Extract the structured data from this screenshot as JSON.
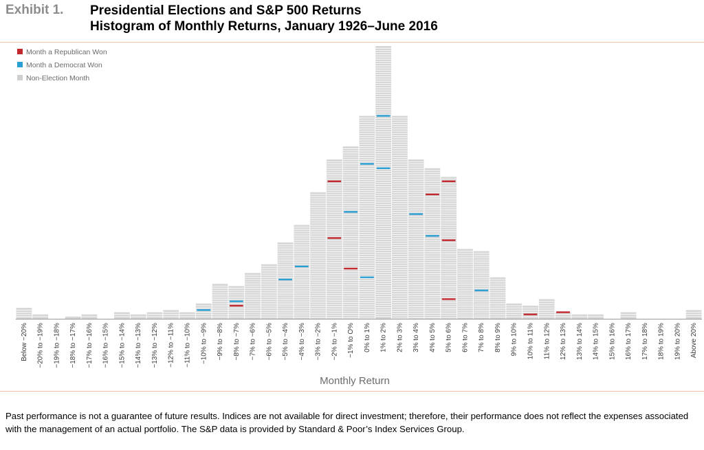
{
  "header": {
    "exhibit": "Exhibit 1.",
    "title_line1": "Presidential Elections and S&P 500 Returns",
    "title_line2": "Histogram of Monthly Returns, January 1926–June 2016"
  },
  "footnote": "Past performance is not a guarantee of future results. Indices are not available for direct investment; therefore, their performance does not reflect the expenses associated with the management of an actual portfolio. The S&P data is provided by Standard & Poor’s Index Services Group.",
  "colors": {
    "bar": "#d6d6d6",
    "stripe": "#ffffff",
    "republican": "#c1272d",
    "democrat": "#2a9fd6",
    "rule": "#f0c2a4"
  },
  "chart_data": {
    "type": "bar",
    "title": "Presidential Elections and S&P 500 Returns — Histogram of Monthly Returns, January 1926–June 2016",
    "xlabel": "Monthly Return",
    "ylabel": "",
    "ylim": [
      0,
      125
    ],
    "grid": false,
    "legend_position": "top-left",
    "legend": [
      {
        "key": "republican",
        "label": "Month a Republican Won"
      },
      {
        "key": "democrat",
        "label": "Month a Democrat Won"
      },
      {
        "key": "non",
        "label": "Non-Election Month"
      }
    ],
    "categories": [
      "Below −20%",
      "−20% to −19%",
      "−19% to −18%",
      "−18% to −17%",
      "−17% to −16%",
      "−16% to −15%",
      "−15% to −14%",
      "−14% to −13%",
      "−13% to −12%",
      "−12% to −11%",
      "−11% to −10%",
      "−10% to −9%",
      "−9% to −8%",
      "−8% to −7%",
      "−7% to −6%",
      "−6% to −5%",
      "−5% to −4%",
      "−4% to −3%",
      "−3% to −2%",
      "−2% to −1%",
      "−1% to 0%",
      "0% to 1%",
      "1% to 2%",
      "2% to 3%",
      "3% to 4%",
      "4% to 5%",
      "5% to 6%",
      "6% to 7%",
      "7% to 8%",
      "8% to 9%",
      "9% to 10%",
      "10% to 11%",
      "11% to 12%",
      "12% to 13%",
      "13% to 14%",
      "14% to 15%",
      "15% to 16%",
      "16% to 17%",
      "17% to 18%",
      "18% to 19%",
      "19% to 20%",
      "Above 20%"
    ],
    "tick_labels": [
      "Below −20%",
      "−20% to −19%",
      "−19% to −18%",
      "−18% to −17%",
      "−17% to −16%",
      "−16% to −15%",
      "−15% to −14%",
      "−14% to −13%",
      "−13% to −12%",
      "−12% to −11%",
      "−11% to −10%",
      "−10% to −9%",
      "−9% to −8%",
      "−8% to −7%",
      "−7% to −6%",
      "−6% to −5%",
      "−5% to −4%",
      "−4% to −3%",
      "−3% to −2%",
      "−2% to −1%",
      "−1% to O%",
      "0% to 1%",
      "1% to 2%",
      "2% to 3%",
      "3% to 4%",
      "4% to 5%",
      "5% to 6%",
      "6% to 7%",
      "7% to 8%",
      "8% to 9%",
      "9% to 10%",
      "10% to 11%",
      "11% to 12%",
      "12% to 13%",
      "13% to 14%",
      "14% to 15%",
      "15% to 16%",
      "16% to 17%",
      "17% to 18%",
      "18% to 19%",
      "19% to 20%",
      "Above 20%"
    ],
    "values": [
      5,
      2,
      0,
      1,
      2,
      0,
      3,
      2,
      3,
      4,
      3,
      7,
      16,
      15,
      21,
      25,
      35,
      43,
      58,
      73,
      79,
      93,
      125,
      93,
      73,
      69,
      65,
      32,
      31,
      19,
      7,
      6,
      9,
      3,
      2,
      2,
      0,
      3,
      0,
      0,
      0,
      4
    ],
    "election_months": [
      {
        "bin": 11,
        "party": "democrat",
        "count": 4
      },
      {
        "bin": 13,
        "party": "democrat",
        "count": 8
      },
      {
        "bin": 13,
        "party": "republican",
        "count": 6
      },
      {
        "bin": 16,
        "party": "democrat",
        "count": 18
      },
      {
        "bin": 17,
        "party": "democrat",
        "count": 24
      },
      {
        "bin": 19,
        "party": "republican",
        "count": 63
      },
      {
        "bin": 19,
        "party": "republican",
        "count": 37
      },
      {
        "bin": 20,
        "party": "democrat",
        "count": 49
      },
      {
        "bin": 20,
        "party": "republican",
        "count": 23
      },
      {
        "bin": 21,
        "party": "democrat",
        "count": 71
      },
      {
        "bin": 21,
        "party": "democrat",
        "count": 19
      },
      {
        "bin": 22,
        "party": "democrat",
        "count": 93
      },
      {
        "bin": 22,
        "party": "democrat",
        "count": 69
      },
      {
        "bin": 24,
        "party": "democrat",
        "count": 48
      },
      {
        "bin": 25,
        "party": "republican",
        "count": 57
      },
      {
        "bin": 25,
        "party": "democrat",
        "count": 38
      },
      {
        "bin": 26,
        "party": "republican",
        "count": 63
      },
      {
        "bin": 26,
        "party": "republican",
        "count": 36
      },
      {
        "bin": 26,
        "party": "republican",
        "count": 9
      },
      {
        "bin": 28,
        "party": "democrat",
        "count": 13
      },
      {
        "bin": 31,
        "party": "republican",
        "count": 2
      },
      {
        "bin": 33,
        "party": "republican",
        "count": 3
      }
    ]
  }
}
